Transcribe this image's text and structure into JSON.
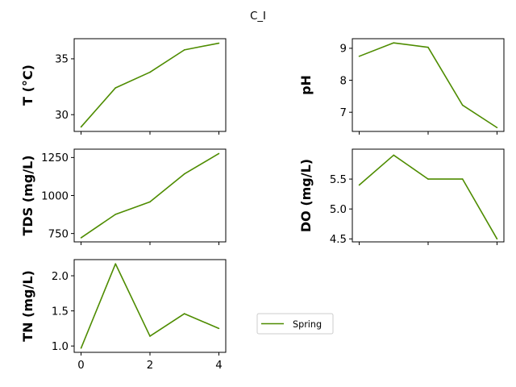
{
  "figure": {
    "title": "C_I",
    "colors": {
      "series": "#4e8c00",
      "axes": "#000000",
      "background": "#ffffff"
    }
  },
  "chart_data": [
    {
      "type": "line",
      "x": [
        0,
        1,
        2,
        3,
        4
      ],
      "series": [
        {
          "name": "Spring",
          "values": [
            28.9,
            32.4,
            33.8,
            35.8,
            36.4
          ]
        }
      ],
      "ylabel": "T  (°C)",
      "ylim": [
        28.5,
        36.8
      ],
      "yticks": [
        30,
        35
      ],
      "xlim": [
        -0.2,
        4.2
      ],
      "xticks": [
        0,
        2,
        4
      ],
      "show_xticklabels": false
    },
    {
      "type": "line",
      "x": [
        0,
        1,
        2,
        3,
        4
      ],
      "series": [
        {
          "name": "Spring",
          "values": [
            8.75,
            9.17,
            9.03,
            7.22,
            6.52
          ]
        }
      ],
      "ylabel": "pH",
      "ylim": [
        6.4,
        9.3
      ],
      "yticks": [
        7,
        8,
        9
      ],
      "xlim": [
        -0.2,
        4.2
      ],
      "xticks": [
        0,
        2,
        4
      ],
      "show_xticklabels": false
    },
    {
      "type": "line",
      "x": [
        0,
        1,
        2,
        3,
        4
      ],
      "series": [
        {
          "name": "Spring",
          "values": [
            722,
            876,
            958,
            1142,
            1276
          ]
        }
      ],
      "ylabel": "TDS (mg/L)",
      "ylim": [
        695,
        1305
      ],
      "yticks": [
        750,
        1000,
        1250
      ],
      "xlim": [
        -0.2,
        4.2
      ],
      "xticks": [
        0,
        2,
        4
      ],
      "show_xticklabels": false
    },
    {
      "type": "line",
      "x": [
        0,
        1,
        2,
        3,
        4
      ],
      "series": [
        {
          "name": "Spring",
          "values": [
            5.4,
            5.9,
            5.5,
            5.5,
            4.5
          ]
        }
      ],
      "ylabel": "DO (mg/L)",
      "ylim": [
        4.45,
        6.0
      ],
      "yticks": [
        4.5,
        5.0,
        5.5
      ],
      "xlim": [
        -0.2,
        4.2
      ],
      "xticks": [
        0,
        2,
        4
      ],
      "show_xticklabels": false
    },
    {
      "type": "line",
      "x": [
        0,
        1,
        2,
        3,
        4
      ],
      "series": [
        {
          "name": "Spring",
          "values": [
            0.97,
            2.17,
            1.14,
            1.46,
            1.25
          ]
        }
      ],
      "ylabel": "TN (mg/L)",
      "ylim": [
        0.91,
        2.23
      ],
      "yticks": [
        1.0,
        1.5,
        2.0
      ],
      "xlim": [
        -0.2,
        4.2
      ],
      "xticks": [
        0,
        2,
        4
      ],
      "show_xticklabels": true
    }
  ],
  "legend": {
    "entries": [
      "Spring"
    ]
  }
}
